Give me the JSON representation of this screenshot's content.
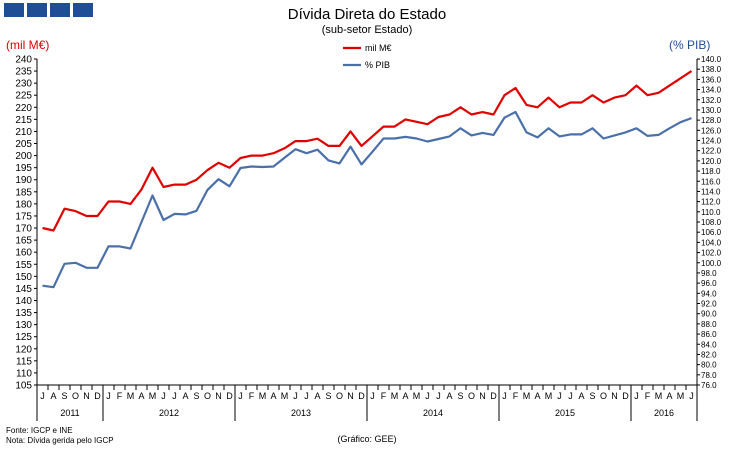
{
  "header": {
    "logo_colors": [
      "#1f4e96",
      "#1f4e96",
      "#1f4e96",
      "#1f4e96"
    ]
  },
  "chart_data": {
    "type": "line",
    "title": "Dívida Direta do Estado",
    "subtitle": "(sub-setor  Estado)",
    "ylabel_left": "(mil M€)",
    "ylabel_right": "(% PIB)",
    "ylim_left": [
      105,
      240
    ],
    "ylim_right": [
      76,
      140
    ],
    "yticks_left": [
      105,
      110,
      115,
      120,
      125,
      130,
      135,
      140,
      145,
      150,
      155,
      160,
      165,
      170,
      175,
      180,
      185,
      190,
      195,
      200,
      205,
      210,
      215,
      220,
      225,
      230,
      235,
      240
    ],
    "yticks_right": [
      "76.0",
      "78.0",
      "80.0",
      "82.0",
      "84.0",
      "86.0",
      "88.0",
      "90.0",
      "92.0",
      "94.0",
      "96.0",
      "98.0",
      "100.0",
      "102.0",
      "104.0",
      "106.0",
      "108.0",
      "110.0",
      "112.0",
      "114.0",
      "116.0",
      "118.0",
      "120.0",
      "122.0",
      "124.0",
      "126.0",
      "128.0",
      "130.0",
      "132.0",
      "134.0",
      "136.0",
      "138.0",
      "140.0"
    ],
    "months": [
      "J",
      "A",
      "S",
      "O",
      "N",
      "D",
      "J",
      "F",
      "M",
      "A",
      "M",
      "J",
      "J",
      "A",
      "S",
      "O",
      "N",
      "D",
      "J",
      "F",
      "M",
      "A",
      "M",
      "J",
      "J",
      "A",
      "S",
      "O",
      "N",
      "D",
      "J",
      "F",
      "M",
      "A",
      "M",
      "J",
      "J",
      "A",
      "S",
      "O",
      "N",
      "D",
      "J",
      "F",
      "M",
      "A",
      "M",
      "J",
      "J",
      "A",
      "S",
      "O",
      "N",
      "D",
      "J",
      "F",
      "M",
      "A",
      "M",
      "J"
    ],
    "years": [
      {
        "label": "2011",
        "start": 0,
        "end": 6
      },
      {
        "label": "2012",
        "start": 6,
        "end": 18
      },
      {
        "label": "2013",
        "start": 18,
        "end": 30
      },
      {
        "label": "2014",
        "start": 30,
        "end": 42
      },
      {
        "label": "2015",
        "start": 42,
        "end": 54
      },
      {
        "label": "2016",
        "start": 54,
        "end": 60
      }
    ],
    "legend_position": "top-center",
    "series": [
      {
        "name": "mil M€",
        "axis": "left",
        "color": "#e00000",
        "values": [
          170,
          169,
          178,
          177,
          175,
          175,
          181,
          181,
          180,
          186,
          195,
          187,
          188,
          188,
          190,
          194,
          197,
          195,
          199,
          200,
          200,
          201,
          203,
          206,
          206,
          207,
          204,
          204,
          210,
          204,
          208,
          212,
          212,
          215,
          214,
          213,
          216,
          217,
          220,
          217,
          218,
          217,
          225,
          228,
          221,
          220,
          224,
          220,
          222,
          222,
          225,
          222,
          224,
          225,
          229,
          225,
          226,
          229,
          232,
          235
        ]
      },
      {
        "name": "% PIB",
        "axis": "right",
        "color": "#4a70aa",
        "values": [
          95.5,
          95.2,
          99.8,
          100.0,
          99.0,
          99.0,
          103.2,
          103.2,
          102.8,
          108.0,
          113.2,
          108.4,
          109.6,
          109.5,
          110.2,
          114.3,
          116.4,
          115.0,
          118.6,
          118.9,
          118.8,
          118.9,
          120.6,
          122.3,
          121.5,
          122.2,
          120.1,
          119.5,
          122.8,
          119.3,
          121.8,
          124.4,
          124.4,
          124.7,
          124.4,
          123.8,
          124.3,
          124.8,
          126.4,
          125.0,
          125.5,
          125.1,
          128.5,
          129.6,
          125.6,
          124.6,
          126.4,
          124.8,
          125.2,
          125.2,
          126.4,
          124.4,
          125.0,
          125.6,
          126.4,
          124.9,
          125.1,
          126.4,
          127.6,
          128.4
        ]
      }
    ]
  },
  "footer": {
    "source": "Fonte: IGCP e INE",
    "note": "Nota: Dívida gerida pelo IGCP",
    "credit": "(Gráfico:  GEE)"
  }
}
